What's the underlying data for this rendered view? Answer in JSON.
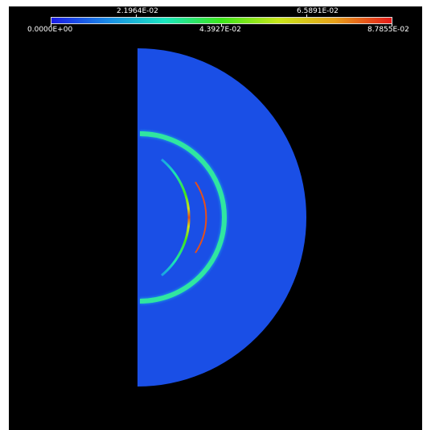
{
  "colorbar": {
    "tick_labels_top": [
      "2.1964E-02",
      "6.5891E-02"
    ],
    "tick_labels_bottom": [
      "0.0000E+00",
      "4.3927E-02",
      "8.7855E-02"
    ],
    "min": 0.0,
    "max": 0.087855,
    "colormap": [
      "#1a1ae6",
      "#1a8ce6",
      "#1ae6c0",
      "#3ce61a",
      "#c8e61a",
      "#e6a01a",
      "#e61a1a"
    ]
  },
  "field": {
    "background_color": "#1a4fe6",
    "frame_color": "#000000"
  }
}
